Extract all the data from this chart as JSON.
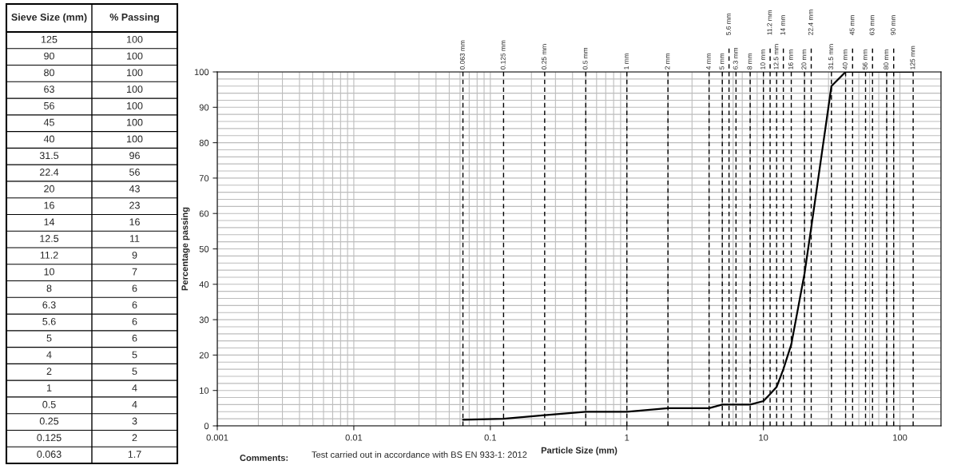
{
  "chart_data": [
    {
      "type": "other",
      "annotations": [
        "Sieve Size (mm)",
        "% Passing",
        "125",
        "100",
        "90",
        "100",
        "80",
        "100",
        "63",
        "100",
        "56",
        "100",
        "45",
        "100",
        "40",
        "100",
        "31.5",
        "96",
        "22.4",
        "56",
        "20",
        "43",
        "16",
        "23",
        "14",
        "16",
        "12.5",
        "11",
        "11.2",
        "9",
        "10",
        "7",
        "8",
        "6",
        "6.3",
        "6",
        "5.6",
        "6",
        "5",
        "6",
        "4",
        "5",
        "2",
        "5",
        "1",
        "4",
        "0.5",
        "4",
        "0.25",
        "3",
        "0.125",
        "2",
        "0.063",
        "1.7"
      ]
    },
    {
      "type": "line",
      "xlabel": "Particle Size (mm)",
      "ylabel": "Percentage passing",
      "x": [
        125,
        90,
        80,
        63,
        56,
        45,
        40,
        31.5,
        22.4,
        20,
        16,
        14,
        12.5,
        11.2,
        10,
        8,
        6.3,
        5.6,
        5,
        4,
        2,
        1,
        0.5,
        0.25,
        0.125,
        0.063
      ],
      "series": [
        {
          "color": "#000000",
          "values": [
            100,
            100,
            100,
            100,
            100,
            100,
            100,
            96,
            56,
            43,
            23,
            16,
            11,
            9,
            7,
            6,
            6,
            6,
            6,
            5,
            5,
            4,
            4,
            3,
            2,
            1.7
          ]
        }
      ],
      "log": "x",
      "marker": "none",
      "line_style": "solid",
      "grid": true,
      "xlim": [
        0.001,
        200
      ],
      "xticks": [
        0.001,
        0.01,
        0.1,
        1,
        10,
        100
      ],
      "ylim": [
        0,
        100
      ],
      "yticks": [
        0,
        10,
        20,
        30,
        40,
        50,
        60,
        70,
        80,
        90,
        100
      ],
      "ref_lines": [
        {
          "axis": "x",
          "value": 0.063,
          "label": "0.063 mm",
          "color": "#000000",
          "line_style": "dashed"
        },
        {
          "axis": "x",
          "value": 0.125,
          "label": "0.125 mm",
          "color": "#000000",
          "line_style": "dashed"
        },
        {
          "axis": "x",
          "value": 0.25,
          "label": "0.25 mm",
          "color": "#000000",
          "line_style": "dashed"
        },
        {
          "axis": "x",
          "value": 0.5,
          "label": "0.5 mm",
          "color": "#000000",
          "line_style": "dashed"
        },
        {
          "axis": "x",
          "value": 1,
          "label": "1 mm",
          "color": "#000000",
          "line_style": "dashed"
        },
        {
          "axis": "x",
          "value": 2,
          "label": "2 mm",
          "color": "#000000",
          "line_style": "dashed"
        },
        {
          "axis": "x",
          "value": 4,
          "label": "4 mm",
          "color": "#000000",
          "line_style": "dashed"
        },
        {
          "axis": "x",
          "value": 5,
          "label": "5 mm",
          "color": "#000000",
          "line_style": "dashed"
        },
        {
          "axis": "x",
          "value": 5.6,
          "label": "5.6 mm",
          "color": "#000000",
          "line_style": "dashed"
        },
        {
          "axis": "x",
          "value": 6.3,
          "label": "6.3 mm",
          "color": "#000000",
          "line_style": "dashed"
        },
        {
          "axis": "x",
          "value": 8,
          "label": "8 mm",
          "color": "#000000",
          "line_style": "dashed"
        },
        {
          "axis": "x",
          "value": 10,
          "label": "10 mm",
          "color": "#000000",
          "line_style": "dashed"
        },
        {
          "axis": "x",
          "value": 11.2,
          "label": "11.2 mm",
          "color": "#000000",
          "line_style": "dashed"
        },
        {
          "axis": "x",
          "value": 12.5,
          "label": "12.5 mm",
          "color": "#000000",
          "line_style": "dashed"
        },
        {
          "axis": "x",
          "value": 14,
          "label": "14 mm",
          "color": "#000000",
          "line_style": "dashed"
        },
        {
          "axis": "x",
          "value": 16,
          "label": "16 mm",
          "color": "#000000",
          "line_style": "dashed"
        },
        {
          "axis": "x",
          "value": 20,
          "label": "20 mm",
          "color": "#000000",
          "line_style": "dashed"
        },
        {
          "axis": "x",
          "value": 22.4,
          "label": "22.4 mm",
          "color": "#000000",
          "line_style": "dashed"
        },
        {
          "axis": "x",
          "value": 31.5,
          "label": "31.5 mm",
          "color": "#000000",
          "line_style": "dashed"
        },
        {
          "axis": "x",
          "value": 40,
          "label": "40 mm",
          "color": "#000000",
          "line_style": "dashed"
        },
        {
          "axis": "x",
          "value": 45,
          "label": "45 mm",
          "color": "#000000",
          "line_style": "dashed"
        },
        {
          "axis": "x",
          "value": 56,
          "label": "56 mm",
          "color": "#000000",
          "line_style": "dashed"
        },
        {
          "axis": "x",
          "value": 63,
          "label": "63 mm",
          "color": "#000000",
          "line_style": "dashed"
        },
        {
          "axis": "x",
          "value": 80,
          "label": "80 mm",
          "color": "#000000",
          "line_style": "dashed"
        },
        {
          "axis": "x",
          "value": 90,
          "label": "90 mm",
          "color": "#000000",
          "line_style": "dashed"
        },
        {
          "axis": "x",
          "value": 125,
          "label": "125 mm",
          "color": "#000000",
          "line_style": "dashed"
        }
      ],
      "annotations": [
        "Comments:",
        "Test carried out in accordance with BS EN 933-1: 2012"
      ]
    }
  ]
}
